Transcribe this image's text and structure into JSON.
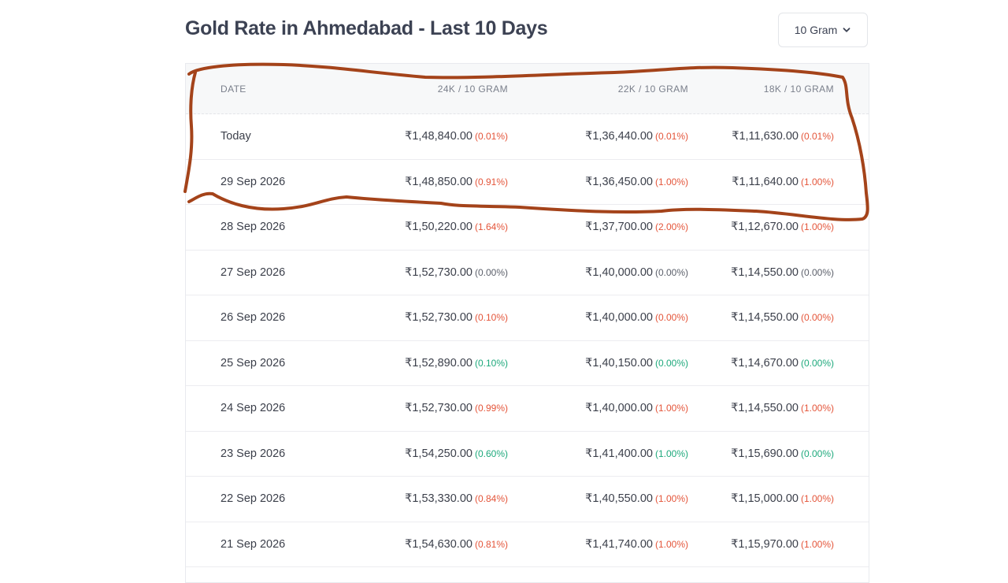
{
  "page": {
    "title": "Gold Rate in Ahmedabad - Last 10 Days"
  },
  "unit_select": {
    "value": "10 Gram",
    "icon": "chevron-down-icon"
  },
  "table": {
    "headers": {
      "date": "DATE",
      "k24": "24K / 10 GRAM",
      "k22": "22K / 10 GRAM",
      "k18": "18K / 10 GRAM"
    },
    "rows": [
      {
        "date": "Today",
        "k24": "₹1,48,840.00",
        "k24_pct": "(0.01%)",
        "k24_dir": "up",
        "k22": "₹1,36,440.00",
        "k22_pct": "(0.01%)",
        "k22_dir": "up",
        "k18": "₹1,11,630.00",
        "k18_pct": "(0.01%)",
        "k18_dir": "up"
      },
      {
        "date": "29 Sep 2026",
        "k24": "₹1,48,850.00",
        "k24_pct": "(0.91%)",
        "k24_dir": "up",
        "k22": "₹1,36,450.00",
        "k22_pct": "(1.00%)",
        "k22_dir": "up",
        "k18": "₹1,11,640.00",
        "k18_pct": "(1.00%)",
        "k18_dir": "up"
      },
      {
        "date": "28 Sep 2026",
        "k24": "₹1,50,220.00",
        "k24_pct": "(1.64%)",
        "k24_dir": "up",
        "k22": "₹1,37,700.00",
        "k22_pct": "(2.00%)",
        "k22_dir": "up",
        "k18": "₹1,12,670.00",
        "k18_pct": "(1.00%)",
        "k18_dir": "up"
      },
      {
        "date": "27 Sep 2026",
        "k24": "₹1,52,730.00",
        "k24_pct": "(0.00%)",
        "k24_dir": "flat",
        "k22": "₹1,40,000.00",
        "k22_pct": "(0.00%)",
        "k22_dir": "flat",
        "k18": "₹1,14,550.00",
        "k18_pct": "(0.00%)",
        "k18_dir": "flat"
      },
      {
        "date": "26 Sep 2026",
        "k24": "₹1,52,730.00",
        "k24_pct": "(0.10%)",
        "k24_dir": "up",
        "k22": "₹1,40,000.00",
        "k22_pct": "(0.00%)",
        "k22_dir": "up",
        "k18": "₹1,14,550.00",
        "k18_pct": "(0.00%)",
        "k18_dir": "up"
      },
      {
        "date": "25 Sep 2026",
        "k24": "₹1,52,890.00",
        "k24_pct": "(0.10%)",
        "k24_dir": "down",
        "k22": "₹1,40,150.00",
        "k22_pct": "(0.00%)",
        "k22_dir": "down",
        "k18": "₹1,14,670.00",
        "k18_pct": "(0.00%)",
        "k18_dir": "down"
      },
      {
        "date": "24 Sep 2026",
        "k24": "₹1,52,730.00",
        "k24_pct": "(0.99%)",
        "k24_dir": "up",
        "k22": "₹1,40,000.00",
        "k22_pct": "(1.00%)",
        "k22_dir": "up",
        "k18": "₹1,14,550.00",
        "k18_pct": "(1.00%)",
        "k18_dir": "up"
      },
      {
        "date": "23 Sep 2026",
        "k24": "₹1,54,250.00",
        "k24_pct": "(0.60%)",
        "k24_dir": "down",
        "k22": "₹1,41,400.00",
        "k22_pct": "(1.00%)",
        "k22_dir": "down",
        "k18": "₹1,15,690.00",
        "k18_pct": "(0.00%)",
        "k18_dir": "down"
      },
      {
        "date": "22 Sep 2026",
        "k24": "₹1,53,330.00",
        "k24_pct": "(0.84%)",
        "k24_dir": "up",
        "k22": "₹1,40,550.00",
        "k22_pct": "(1.00%)",
        "k22_dir": "up",
        "k18": "₹1,15,000.00",
        "k18_pct": "(1.00%)",
        "k18_dir": "up"
      },
      {
        "date": "21 Sep 2026",
        "k24": "₹1,54,630.00",
        "k24_pct": "(0.81%)",
        "k24_dir": "up",
        "k22": "₹1,41,740.00",
        "k22_pct": "(1.00%)",
        "k22_dir": "up",
        "k18": "₹1,15,970.00",
        "k18_pct": "(1.00%)",
        "k18_dir": "up"
      }
    ]
  },
  "colors": {
    "up": "#e4553a",
    "down": "#1ea97c",
    "annotation_stroke": "#a4431a"
  }
}
